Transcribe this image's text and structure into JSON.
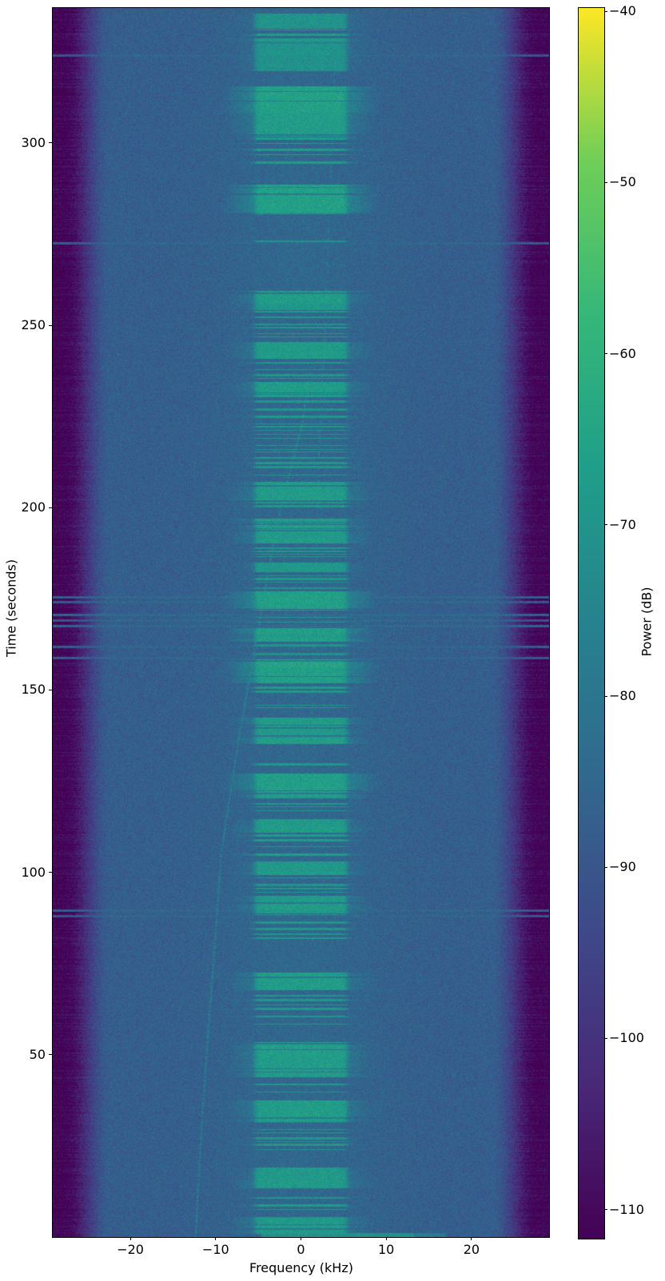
{
  "chart_data": {
    "type": "heatmap",
    "subtype": "spectrogram-waterfall",
    "title": "",
    "xlabel": "Frequency (kHz)",
    "ylabel": "Time (seconds)",
    "xlim": [
      -29.1,
      29.1
    ],
    "ylim": [
      0,
      337
    ],
    "xticks": [
      -20,
      -10,
      0,
      10,
      20
    ],
    "yticks": [
      50,
      100,
      150,
      200,
      250,
      300
    ],
    "grid": false,
    "colors": {
      "background": "#ffffff",
      "text": "#000000",
      "spine": "#000000"
    },
    "colorbar": {
      "label": "Power (dB)",
      "ticks": [
        -40,
        -50,
        -60,
        -70,
        -80,
        -90,
        -100,
        -110
      ],
      "vmin": -111.7,
      "vmax": -39.8,
      "colormap": "viridis",
      "stops": [
        "#440154",
        "#482878",
        "#3e4989",
        "#31688e",
        "#26828e",
        "#1f9e89",
        "#35b779",
        "#6ece58",
        "#fde725"
      ]
    },
    "noise": {
      "floor_db": -87.5,
      "center_boost_db": 2.8,
      "center_boost_sigma_khz": 9.5,
      "edge_rolloff_start_khz": 22.3,
      "edge_rolloff_end_khz": 27.8,
      "edge_drop_db": 24,
      "speckle_db": 7
    },
    "signal_band": {
      "f_low_khz": -5.2,
      "f_high_khz": 5.2,
      "edge_softness_khz": 0.25
    },
    "burst_format": [
      "t_start_s",
      "t_end_s",
      "power_db",
      "mode(w=wide,s=stripes)"
    ],
    "bursts": [
      [
        331.5,
        335.5,
        -69.5,
        "w"
      ],
      [
        328,
        331,
        -68,
        "s"
      ],
      [
        320,
        328,
        -70.5,
        "w"
      ],
      [
        302,
        315.5,
        -66.5,
        "w"
      ],
      [
        297,
        301.5,
        -68,
        "s"
      ],
      [
        293.5,
        295,
        -68.5,
        "s"
      ],
      [
        281,
        288.5,
        -67,
        "w"
      ],
      [
        279.5,
        281,
        -70,
        "s"
      ],
      [
        271.8,
        273.2,
        -70,
        "s"
      ],
      [
        254.5,
        259.5,
        -68.5,
        "w"
      ],
      [
        247,
        254,
        -69,
        "s"
      ],
      [
        241,
        245.5,
        -68,
        "w"
      ],
      [
        235.5,
        240,
        -69,
        "s"
      ],
      [
        230.5,
        234.5,
        -68.5,
        "w"
      ],
      [
        223,
        229.5,
        -69,
        "s"
      ],
      [
        216,
        222.5,
        -70,
        "s"
      ],
      [
        208,
        215.5,
        -69,
        "s"
      ],
      [
        202,
        207,
        -68,
        "w"
      ],
      [
        200,
        201.5,
        -69,
        "s"
      ],
      [
        190.5,
        197,
        -68.5,
        "w"
      ],
      [
        185,
        189,
        -69.5,
        "s"
      ],
      [
        182.5,
        185,
        -68.5,
        "w"
      ],
      [
        178,
        181.5,
        -69.5,
        "s"
      ],
      [
        172.5,
        177,
        -67,
        "w"
      ],
      [
        167.5,
        172,
        -68,
        "s"
      ],
      [
        163.5,
        167,
        -67.5,
        "w"
      ],
      [
        159,
        162.5,
        -70,
        "s"
      ],
      [
        152,
        158.5,
        -65.5,
        "w"
      ],
      [
        149,
        151,
        -69,
        "s"
      ],
      [
        144.8,
        146,
        -69,
        "s"
      ],
      [
        135.5,
        142.5,
        -68,
        "w"
      ],
      [
        128,
        130,
        -69.5,
        "s"
      ],
      [
        120.5,
        127,
        -67.5,
        "w"
      ],
      [
        117,
        119,
        -69.5,
        "s"
      ],
      [
        111,
        114.5,
        -68.5,
        "w"
      ],
      [
        104,
        110.5,
        -68.5,
        "s"
      ],
      [
        99.5,
        103,
        -68,
        "w"
      ],
      [
        94,
        98.5,
        -69.5,
        "s"
      ],
      [
        89,
        93.5,
        -68,
        "w"
      ],
      [
        82,
        88.5,
        -70,
        "s"
      ],
      [
        68,
        72.5,
        -67.5,
        "w"
      ],
      [
        58.5,
        66.5,
        -69.5,
        "s"
      ],
      [
        44,
        53.5,
        -66.5,
        "w"
      ],
      [
        39,
        42,
        -69.5,
        "s"
      ],
      [
        31.5,
        37.5,
        -68,
        "w"
      ],
      [
        24,
        29.5,
        -69.5,
        "s"
      ],
      [
        13.5,
        19,
        -68,
        "w"
      ],
      [
        7,
        11,
        -69.5,
        "s"
      ],
      [
        1,
        5.5,
        -68,
        "w"
      ]
    ],
    "carrier_tracks": [
      {
        "name": "doppler-carrier",
        "db_above_floor": 9,
        "duty": 0.75,
        "points": [
          [
            0,
            -12.4
          ],
          [
            30,
            -11.7
          ],
          [
            60,
            -10.8
          ],
          [
            85,
            -10.0
          ],
          [
            105,
            -9.4
          ],
          [
            125,
            -8.1
          ],
          [
            140,
            -7.1
          ],
          [
            155,
            -5.9
          ],
          [
            170,
            -4.8
          ],
          [
            185,
            -3.7
          ],
          [
            200,
            -2.4
          ],
          [
            212,
            -1.1
          ],
          [
            222,
            0.0
          ],
          [
            235,
            0.9
          ]
        ]
      },
      {
        "name": "faint-carrier",
        "db_above_floor": 5.5,
        "duty": 0.45,
        "points": [
          [
            140,
            1.2
          ],
          [
            180,
            1.7
          ],
          [
            212,
            2.0
          ],
          [
            250,
            2.8
          ],
          [
            295,
            3.5
          ],
          [
            337,
            4.2
          ]
        ]
      }
    ],
    "wideband_event": {
      "t0": 0.15,
      "t1": 1.1,
      "f0": -4.6,
      "f1": 13.3,
      "db": -71,
      "f1_faint": 17.0,
      "db_faint": -79
    },
    "fullwidth_lines": [
      {
        "t": 175.6,
        "db": -85
      },
      {
        "t": 174.3,
        "db": -86.5
      },
      {
        "t": 170.8,
        "db": -85
      },
      {
        "t": 169.2,
        "db": -86
      },
      {
        "t": 167.6,
        "db": -85
      },
      {
        "t": 161.9,
        "db": -87
      },
      {
        "t": 158.9,
        "db": -87
      },
      {
        "t": 89.6,
        "db": -86.5
      },
      {
        "t": 88.0,
        "db": -87.5
      },
      {
        "t": 324.0,
        "db": -87.5
      },
      {
        "t": 272.5,
        "db": -87
      }
    ],
    "seed": 1337
  }
}
